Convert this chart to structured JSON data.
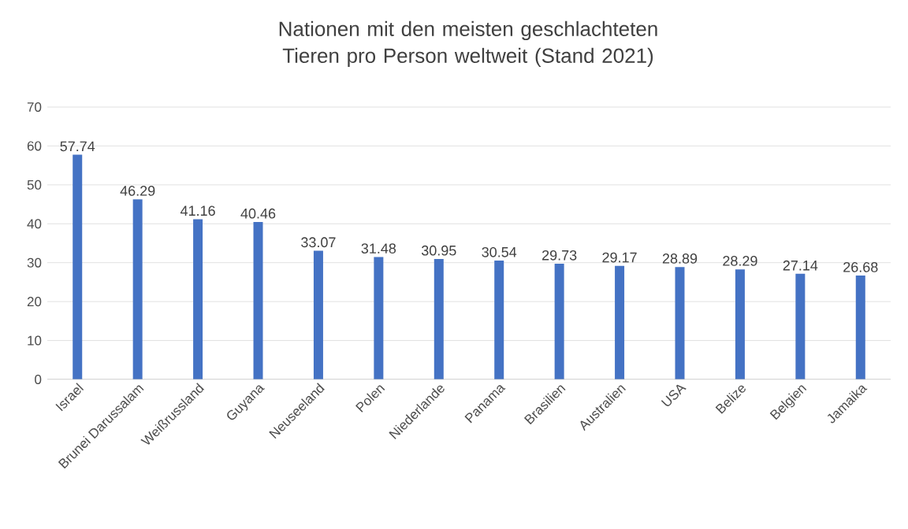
{
  "chart_data": {
    "type": "bar",
    "title": "Nationen mit den meisten geschlachteten Tieren pro Person weltweit (Stand 2021)",
    "categories": [
      "Israel",
      "Brunei Darussalam",
      "Weißrussland",
      "Guyana",
      "Neuseeland",
      "Polen",
      "Niederlande",
      "Panama",
      "Brasilien",
      "Australien",
      "USA",
      "Belize",
      "Belgien",
      "Jamaika"
    ],
    "values": [
      57.74,
      46.29,
      41.16,
      40.46,
      33.07,
      31.48,
      30.95,
      30.54,
      29.73,
      29.17,
      28.89,
      28.29,
      27.14,
      26.68
    ],
    "color": "#4472c4",
    "ylim": [
      0,
      70
    ],
    "yticks": [
      0,
      10,
      20,
      30,
      40,
      50,
      60,
      70
    ],
    "grid": "y",
    "data_labels": true
  }
}
